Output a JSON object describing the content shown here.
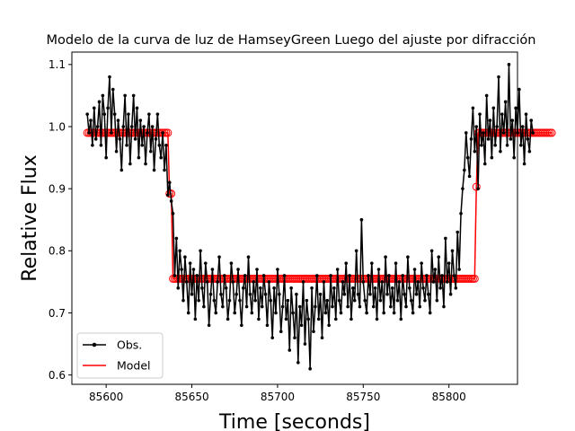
{
  "chart_data": {
    "type": "line",
    "title": "Modelo de la curva de luz de HamseyGreen Luego del ajuste por difracción",
    "xlabel": "Time [seconds]",
    "ylabel": "Relative Flux",
    "xlim": [
      85580,
      85840
    ],
    "ylim": [
      0.585,
      1.12
    ],
    "xticks": [
      85600,
      85650,
      85700,
      85750,
      85800
    ],
    "yticks": [
      0.6,
      0.7,
      0.8,
      0.9,
      1.0,
      1.1
    ],
    "xtick_labels": [
      "85600",
      "85650",
      "85700",
      "85750",
      "85800"
    ],
    "ytick_labels": [
      "0.6",
      "0.7",
      "0.8",
      "0.9",
      "1.0",
      "1.1"
    ],
    "grid": false,
    "legend": {
      "placement": "lower-left",
      "entries": [
        {
          "name": "Obs.",
          "color": "#000000",
          "marker": "dot"
        },
        {
          "name": "Model",
          "color": "#ff0000",
          "marker": "none"
        }
      ]
    },
    "series": [
      {
        "name": "Obs.",
        "color": "#000000",
        "x_start": 85589,
        "x_step": 1,
        "y": [
          1.02,
          0.99,
          1.01,
          0.97,
          1.03,
          0.98,
          1.0,
          1.04,
          0.97,
          1.05,
          1.02,
          0.95,
          1.03,
          1.08,
          0.99,
          1.06,
          1.02,
          0.96,
          1.01,
          0.98,
          0.93,
          1.0,
          1.05,
          0.97,
          1.02,
          0.94,
          1.0,
          1.05,
          0.98,
          1.03,
          0.95,
          1.01,
          0.97,
          1.0,
          0.94,
          0.99,
          1.02,
          0.96,
          1.0,
          0.93,
          0.98,
          1.02,
          0.97,
          0.95,
          0.99,
          0.93,
          0.97,
          0.89,
          0.91,
          0.88,
          0.86,
          0.76,
          0.82,
          0.74,
          0.8,
          0.77,
          0.72,
          0.79,
          0.75,
          0.7,
          0.78,
          0.73,
          0.77,
          0.69,
          0.76,
          0.72,
          0.8,
          0.74,
          0.71,
          0.78,
          0.75,
          0.68,
          0.73,
          0.77,
          0.72,
          0.7,
          0.75,
          0.79,
          0.73,
          0.71,
          0.76,
          0.74,
          0.69,
          0.72,
          0.78,
          0.75,
          0.7,
          0.73,
          0.77,
          0.72,
          0.68,
          0.74,
          0.76,
          0.71,
          0.79,
          0.73,
          0.7,
          0.75,
          0.72,
          0.77,
          0.69,
          0.74,
          0.71,
          0.76,
          0.73,
          0.68,
          0.75,
          0.72,
          0.66,
          0.74,
          0.7,
          0.77,
          0.73,
          0.67,
          0.71,
          0.76,
          0.69,
          0.72,
          0.64,
          0.74,
          0.7,
          0.66,
          0.73,
          0.62,
          0.71,
          0.68,
          0.75,
          0.65,
          0.72,
          0.69,
          0.61,
          0.74,
          0.67,
          0.71,
          0.76,
          0.69,
          0.73,
          0.66,
          0.75,
          0.7,
          0.72,
          0.68,
          0.76,
          0.71,
          0.74,
          0.69,
          0.77,
          0.72,
          0.7,
          0.75,
          0.73,
          0.78,
          0.71,
          0.76,
          0.69,
          0.74,
          0.72,
          0.8,
          0.73,
          0.71,
          0.85,
          0.75,
          0.72,
          0.7,
          0.76,
          0.73,
          0.78,
          0.71,
          0.74,
          0.69,
          0.77,
          0.72,
          0.75,
          0.7,
          0.79,
          0.73,
          0.76,
          0.71,
          0.74,
          0.7,
          0.78,
          0.72,
          0.75,
          0.69,
          0.76,
          0.73,
          0.71,
          0.79,
          0.74,
          0.72,
          0.7,
          0.77,
          0.73,
          0.75,
          0.71,
          0.78,
          0.74,
          0.72,
          0.76,
          0.73,
          0.7,
          0.8,
          0.75,
          0.77,
          0.72,
          0.79,
          0.74,
          0.76,
          0.71,
          0.82,
          0.75,
          0.78,
          0.73,
          0.8,
          0.76,
          0.74,
          0.83,
          0.77,
          0.86,
          0.9,
          0.93,
          0.99,
          0.95,
          0.92,
          0.98,
          1.03,
          0.96,
          1.0,
          0.9,
          1.02,
          0.97,
          0.99,
          0.94,
          1.05,
          0.98,
          1.01,
          0.95,
          1.03,
          0.97,
          1.0,
          1.08,
          0.96,
          1.02,
          0.99,
          1.04,
          0.97,
          1.1,
          0.98,
          1.01,
          0.95,
          1.03,
          0.99,
          1.06,
          0.97,
          1.0,
          0.94,
          1.02,
          0.98,
          0.96,
          1.01,
          0.99
        ]
      },
      {
        "name": "Model",
        "color": "#ff0000",
        "x_start": 85589,
        "x_step": 1,
        "y": [
          0.99,
          0.99,
          0.99,
          0.99,
          0.99,
          0.99,
          0.99,
          0.99,
          0.99,
          0.99,
          0.99,
          0.99,
          0.99,
          0.99,
          0.99,
          0.99,
          0.99,
          0.99,
          0.99,
          0.99,
          0.99,
          0.99,
          0.99,
          0.99,
          0.99,
          0.99,
          0.99,
          0.99,
          0.99,
          0.99,
          0.99,
          0.99,
          0.99,
          0.99,
          0.99,
          0.99,
          0.99,
          0.99,
          0.99,
          0.99,
          0.99,
          0.99,
          0.99,
          0.99,
          0.99,
          0.99,
          0.99,
          0.99,
          0.892,
          0.892,
          0.755,
          0.755,
          0.755,
          0.755,
          0.755,
          0.755,
          0.755,
          0.755,
          0.755,
          0.755,
          0.755,
          0.755,
          0.755,
          0.755,
          0.755,
          0.755,
          0.755,
          0.755,
          0.755,
          0.755,
          0.755,
          0.755,
          0.755,
          0.755,
          0.755,
          0.755,
          0.755,
          0.755,
          0.755,
          0.755,
          0.755,
          0.755,
          0.755,
          0.755,
          0.755,
          0.755,
          0.755,
          0.755,
          0.755,
          0.755,
          0.755,
          0.755,
          0.755,
          0.755,
          0.755,
          0.755,
          0.755,
          0.755,
          0.755,
          0.755,
          0.755,
          0.755,
          0.755,
          0.755,
          0.755,
          0.755,
          0.755,
          0.755,
          0.755,
          0.755,
          0.755,
          0.755,
          0.755,
          0.755,
          0.755,
          0.755,
          0.755,
          0.755,
          0.755,
          0.755,
          0.755,
          0.755,
          0.755,
          0.755,
          0.755,
          0.755,
          0.755,
          0.755,
          0.755,
          0.755,
          0.755,
          0.755,
          0.755,
          0.755,
          0.755,
          0.755,
          0.755,
          0.755,
          0.755,
          0.755,
          0.755,
          0.755,
          0.755,
          0.755,
          0.755,
          0.755,
          0.755,
          0.755,
          0.755,
          0.755,
          0.755,
          0.755,
          0.755,
          0.755,
          0.755,
          0.755,
          0.755,
          0.755,
          0.755,
          0.755,
          0.755,
          0.755,
          0.755,
          0.755,
          0.755,
          0.755,
          0.755,
          0.755,
          0.755,
          0.755,
          0.755,
          0.755,
          0.755,
          0.755,
          0.755,
          0.755,
          0.755,
          0.755,
          0.755,
          0.755,
          0.755,
          0.755,
          0.755,
          0.755,
          0.755,
          0.755,
          0.755,
          0.755,
          0.755,
          0.755,
          0.755,
          0.755,
          0.755,
          0.755,
          0.755,
          0.755,
          0.755,
          0.755,
          0.755,
          0.755,
          0.755,
          0.755,
          0.755,
          0.755,
          0.755,
          0.755,
          0.755,
          0.755,
          0.755,
          0.755,
          0.755,
          0.755,
          0.755,
          0.755,
          0.755,
          0.755,
          0.755,
          0.755,
          0.755,
          0.755,
          0.755,
          0.755,
          0.755,
          0.755,
          0.755,
          0.755,
          0.755,
          0.903,
          0.99,
          0.99,
          0.99,
          0.99,
          0.99,
          0.99,
          0.99,
          0.99,
          0.99,
          0.99,
          0.99,
          0.99,
          0.99,
          0.99,
          0.99,
          0.99,
          0.99,
          0.99,
          0.99,
          0.99,
          0.99,
          0.99,
          0.99,
          0.99,
          0.99,
          0.99,
          0.99,
          0.99,
          0.99,
          0.99,
          0.99,
          0.99,
          0.99,
          0.99,
          0.99,
          0.99,
          0.99,
          0.99,
          0.99,
          0.99,
          0.99,
          0.99,
          0.99,
          0.99
        ]
      }
    ]
  }
}
